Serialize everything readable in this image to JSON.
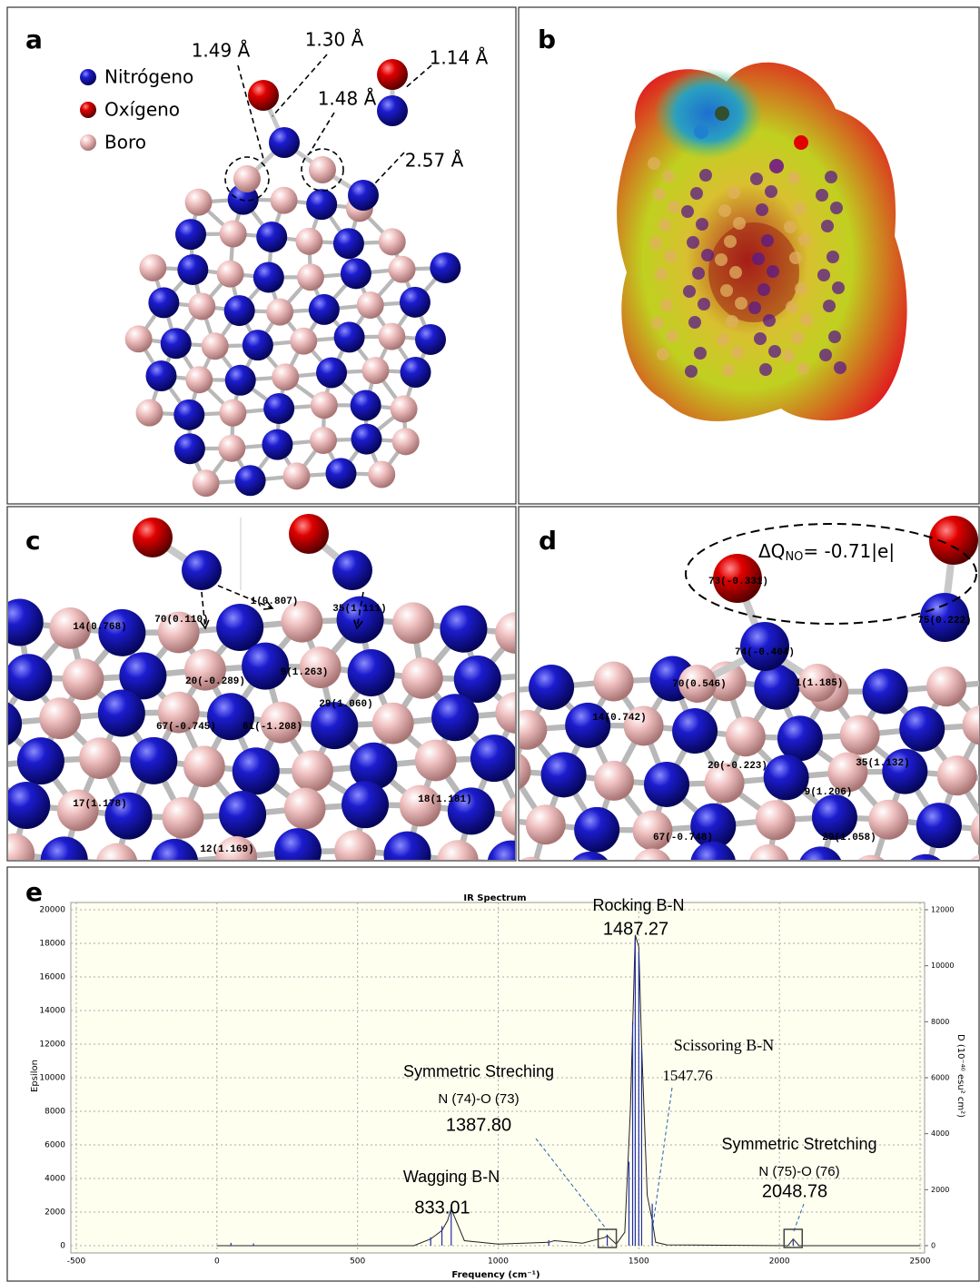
{
  "panels": {
    "a": {
      "label": "a",
      "legend": [
        "Nitrógeno",
        "Oxígeno",
        "Boro"
      ],
      "bond_labels": [
        "1.49 Å",
        "1.30 Å",
        "1.48 Å",
        "1.14 Å",
        "2.57 Å"
      ]
    },
    "b": {
      "label": "b"
    },
    "c": {
      "label": "c",
      "atom_labels": [
        "70(0.110)",
        "1(0.807)",
        "35(1.111)",
        "14(0.768)",
        "29(1.060)",
        "61(-1.208)",
        "12(1.169)",
        "17(1.178)",
        "18(1.181)",
        "67(-0.745)",
        "20(-0.289)",
        "9(1.263)"
      ]
    },
    "d": {
      "label": "d",
      "delta_q": {
        "symbol": "ΔQ",
        "subscript": "NO",
        "value": "= -0.71|e|"
      },
      "atom_labels": [
        "73(-0.331)",
        "74(-0.404)",
        "75(0.222)",
        "70(0.546)",
        "1(1.185)",
        "14(0.742)",
        "9(1.206)",
        "29(1.058)",
        "35(1.132)",
        "67(-0.748)",
        "20(-0.223)"
      ]
    }
  },
  "chart_data": {
    "type": "line",
    "label": "e",
    "title": "IR Spectrum",
    "x_label": "Frequency (cm⁻¹)",
    "y_label": "Epsilon",
    "y2_label": "D (10⁻⁴⁰ esu² cm²)",
    "xlim": [
      -500,
      2500
    ],
    "xticks": [
      -500,
      0,
      500,
      1000,
      1500,
      2000,
      2500
    ],
    "ylim": [
      0,
      20000
    ],
    "yticks": [
      0,
      2000,
      4000,
      6000,
      8000,
      10000,
      12000,
      14000,
      16000,
      18000,
      20000
    ],
    "y2lim": [
      0,
      12000
    ],
    "y2ticks": [
      0,
      2000,
      4000,
      6000,
      8000,
      10000,
      12000
    ],
    "grid": true,
    "series": [
      {
        "color": "#222222",
        "x": [
          0,
          700,
          760,
          800,
          820,
          833.01,
          850,
          880,
          1000,
          1180,
          1200,
          1300,
          1380,
          1387.8,
          1400,
          1420,
          1450,
          1470,
          1487.27,
          1500,
          1510,
          1530,
          1547.76,
          1560,
          1600,
          2030,
          2048.78,
          2070,
          2500
        ],
        "values": [
          0,
          0,
          400,
          900,
          1500,
          2200,
          1500,
          300,
          100,
          200,
          300,
          150,
          500,
          600,
          400,
          100,
          800,
          8000,
          18500,
          17800,
          12000,
          3000,
          1500,
          200,
          50,
          0,
          400,
          0,
          0
        ]
      },
      {
        "color": "#1f2fa8",
        "axis": "y2",
        "style": "stick",
        "x": [
          50,
          130,
          760,
          800,
          833.01,
          1180,
          1387.8,
          1465,
          1478,
          1487.27,
          1500,
          1510,
          1547.76,
          2048.78
        ],
        "values": [
          100,
          80,
          300,
          700,
          1300,
          200,
          400,
          3000,
          8000,
          11000,
          10500,
          7000,
          1500,
          200
        ]
      }
    ],
    "annotations": [
      {
        "lines": [
          "Rocking B-N"
        ],
        "value_label": "1487.27",
        "x": 1487.27
      },
      {
        "lines": [
          "Scissoring B-N"
        ],
        "value_label": "1547.76",
        "x": 1547.76
      },
      {
        "lines": [
          "Symmetric Streching",
          "N (74)-O (73)"
        ],
        "value_label": "1387.80",
        "x": 1387.8
      },
      {
        "lines": [
          "Wagging B-N"
        ],
        "value_label": "833.01",
        "x": 833.01
      },
      {
        "lines": [
          "Symmetric Stretching",
          "N (75)-O (76)"
        ],
        "value_label": "2048.78",
        "x": 2048.78
      }
    ]
  }
}
